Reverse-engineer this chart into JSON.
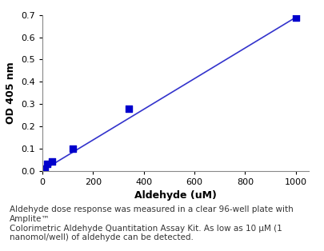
{
  "scatter_x": [
    10,
    20,
    40,
    120,
    340,
    1000
  ],
  "scatter_y": [
    0.01,
    0.03,
    0.04,
    0.1,
    0.28,
    0.69
  ],
  "line_x": [
    0,
    1000
  ],
  "line_y": [
    0.0,
    0.69
  ],
  "marker_color": "#0000CC",
  "line_color": "#3333CC",
  "xlabel": "Aldehyde (uM)",
  "ylabel": "OD 405 nm",
  "xlim": [
    0,
    1050
  ],
  "ylim": [
    0.0,
    0.7
  ],
  "xticks": [
    0,
    200,
    400,
    600,
    800,
    1000
  ],
  "yticks": [
    0.0,
    0.1,
    0.2,
    0.3,
    0.4,
    0.5,
    0.6,
    0.7
  ],
  "caption_line1": "Aldehyde dose response was measured in a clear 96-well plate with Amplite™",
  "caption_line2": "Colorimetric Aldehyde Quantitation Assay Kit. As low as 10 μM (1",
  "caption_line3": "nanomol/well) of aldehyde can be detected.",
  "bg_color": "#ffffff",
  "marker_size": 6,
  "font_size_axis_label": 9,
  "font_size_tick": 8,
  "font_size_caption": 7.5
}
